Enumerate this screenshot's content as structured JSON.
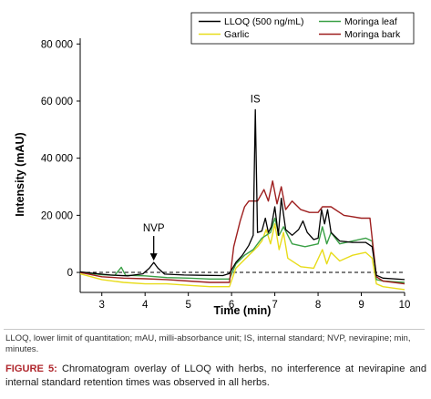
{
  "chart_data": {
    "type": "line",
    "xlabel": "Time (min)",
    "ylabel": "Intensity (mAU)",
    "xlim": [
      2.5,
      10
    ],
    "ylim": [
      -7000,
      82000
    ],
    "x_ticks": [
      "3",
      "4",
      "5",
      "6",
      "7",
      "8",
      "9",
      "10"
    ],
    "y_ticks": [
      "0",
      "20 000",
      "40 000",
      "60 000",
      "80 000"
    ],
    "grid": false,
    "legend_position": "top-right",
    "baseline": {
      "y": 0,
      "style": "dashed"
    },
    "annotations": [
      {
        "text": "NVP",
        "x": 4.2,
        "y": 3500,
        "arrow": true
      },
      {
        "text": "IS",
        "x": 6.55,
        "y": 57000,
        "arrow": false
      }
    ],
    "series": [
      {
        "name": "LLOQ (500 ng/mL)",
        "color": "#000000",
        "points": [
          [
            2.5,
            200
          ],
          [
            2.8,
            -300
          ],
          [
            3.2,
            -900
          ],
          [
            3.6,
            -1200
          ],
          [
            3.95,
            -500
          ],
          [
            4.1,
            1500
          ],
          [
            4.2,
            3500
          ],
          [
            4.3,
            1500
          ],
          [
            4.45,
            -600
          ],
          [
            4.9,
            -900
          ],
          [
            5.3,
            -1000
          ],
          [
            5.8,
            -1100
          ],
          [
            5.95,
            -400
          ],
          [
            6.1,
            3500
          ],
          [
            6.25,
            6000
          ],
          [
            6.4,
            9500
          ],
          [
            6.5,
            13000
          ],
          [
            6.55,
            57000
          ],
          [
            6.6,
            14000
          ],
          [
            6.7,
            14500
          ],
          [
            6.78,
            19000
          ],
          [
            6.85,
            14000
          ],
          [
            6.92,
            16000
          ],
          [
            7.0,
            23000
          ],
          [
            7.08,
            13000
          ],
          [
            7.15,
            26000
          ],
          [
            7.25,
            15000
          ],
          [
            7.4,
            13000
          ],
          [
            7.55,
            15000
          ],
          [
            7.65,
            18000
          ],
          [
            7.75,
            14000
          ],
          [
            7.9,
            11500
          ],
          [
            8.0,
            12000
          ],
          [
            8.08,
            22000
          ],
          [
            8.15,
            17000
          ],
          [
            8.22,
            22000
          ],
          [
            8.3,
            14000
          ],
          [
            8.5,
            11000
          ],
          [
            8.8,
            10500
          ],
          [
            9.1,
            10500
          ],
          [
            9.25,
            9000
          ],
          [
            9.35,
            -1000
          ],
          [
            9.5,
            -2000
          ],
          [
            10,
            -2500
          ]
        ]
      },
      {
        "name": "Garlic",
        "color": "#e8dc1a",
        "points": [
          [
            2.5,
            -500
          ],
          [
            3.0,
            -2500
          ],
          [
            3.5,
            -3500
          ],
          [
            4.0,
            -4000
          ],
          [
            4.5,
            -4000
          ],
          [
            5.0,
            -4500
          ],
          [
            5.5,
            -5000
          ],
          [
            5.95,
            -5000
          ],
          [
            6.1,
            1500
          ],
          [
            6.3,
            4500
          ],
          [
            6.5,
            7500
          ],
          [
            6.6,
            9000
          ],
          [
            6.7,
            11000
          ],
          [
            6.8,
            15000
          ],
          [
            6.9,
            10000
          ],
          [
            7.0,
            17000
          ],
          [
            7.1,
            8000
          ],
          [
            7.2,
            14000
          ],
          [
            7.3,
            5000
          ],
          [
            7.6,
            2000
          ],
          [
            7.9,
            1500
          ],
          [
            8.1,
            8000
          ],
          [
            8.2,
            3000
          ],
          [
            8.3,
            7000
          ],
          [
            8.5,
            4000
          ],
          [
            8.8,
            6000
          ],
          [
            9.1,
            7000
          ],
          [
            9.25,
            5000
          ],
          [
            9.35,
            -4000
          ],
          [
            9.5,
            -5000
          ],
          [
            10,
            -6000
          ]
        ]
      },
      {
        "name": "Moringa leaf",
        "color": "#3aa046",
        "points": [
          [
            2.5,
            0
          ],
          [
            3.0,
            -800
          ],
          [
            3.3,
            -1000
          ],
          [
            3.45,
            1800
          ],
          [
            3.55,
            -1000
          ],
          [
            4.0,
            -1200
          ],
          [
            4.5,
            -1800
          ],
          [
            5.0,
            -2000
          ],
          [
            5.5,
            -2300
          ],
          [
            5.95,
            -2300
          ],
          [
            6.1,
            3000
          ],
          [
            6.3,
            6000
          ],
          [
            6.5,
            8000
          ],
          [
            6.7,
            12000
          ],
          [
            6.9,
            14000
          ],
          [
            7.0,
            19000
          ],
          [
            7.1,
            13000
          ],
          [
            7.2,
            16000
          ],
          [
            7.4,
            10000
          ],
          [
            7.7,
            9000
          ],
          [
            8.0,
            10000
          ],
          [
            8.1,
            16000
          ],
          [
            8.2,
            10000
          ],
          [
            8.3,
            14000
          ],
          [
            8.5,
            10000
          ],
          [
            8.8,
            11000
          ],
          [
            9.1,
            12000
          ],
          [
            9.25,
            11000
          ],
          [
            9.35,
            -2500
          ],
          [
            9.5,
            -3000
          ],
          [
            10,
            -3500
          ]
        ]
      },
      {
        "name": "Moringa bark",
        "color": "#9e1f1f",
        "points": [
          [
            2.5,
            0
          ],
          [
            3.0,
            -1500
          ],
          [
            3.5,
            -2000
          ],
          [
            4.0,
            -2200
          ],
          [
            4.5,
            -2500
          ],
          [
            5.0,
            -3000
          ],
          [
            5.5,
            -3500
          ],
          [
            5.95,
            -3500
          ],
          [
            6.05,
            9000
          ],
          [
            6.2,
            18000
          ],
          [
            6.3,
            23000
          ],
          [
            6.4,
            25000
          ],
          [
            6.6,
            25000
          ],
          [
            6.75,
            29000
          ],
          [
            6.85,
            25000
          ],
          [
            6.95,
            32000
          ],
          [
            7.05,
            24000
          ],
          [
            7.15,
            30000
          ],
          [
            7.25,
            22000
          ],
          [
            7.4,
            25000
          ],
          [
            7.6,
            22000
          ],
          [
            7.8,
            21000
          ],
          [
            8.0,
            21000
          ],
          [
            8.1,
            23000
          ],
          [
            8.3,
            23000
          ],
          [
            8.6,
            20000
          ],
          [
            9.0,
            19000
          ],
          [
            9.2,
            19000
          ],
          [
            9.35,
            -1500
          ],
          [
            9.5,
            -3000
          ],
          [
            10,
            -4000
          ]
        ]
      }
    ]
  },
  "footnote": "LLOQ, lower limit of quantitation; mAU, milli-absorbance unit; IS, internal standard; NVP, nevirapine; min, minutes.",
  "caption": {
    "label": "FIGURE 5:",
    "text": "Chromatogram overlay of LLOQ with herbs, no interference at nevirapine and internal standard retention times was observed in all herbs."
  }
}
